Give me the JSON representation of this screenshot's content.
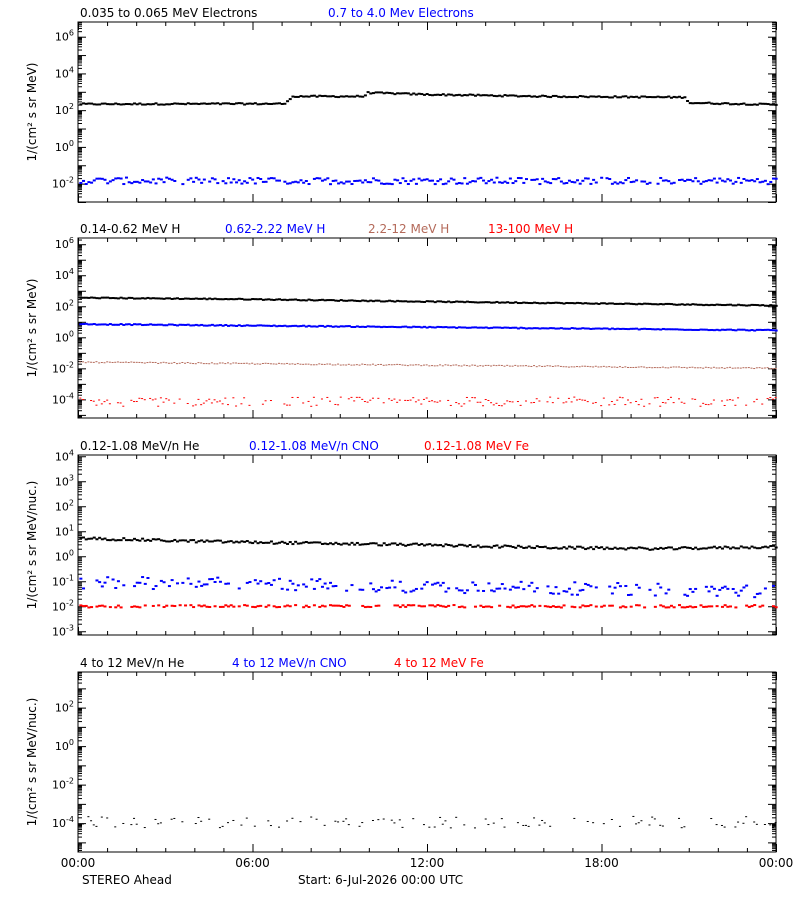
{
  "colors": {
    "black": "#000000",
    "blue": "#0000ff",
    "tan": "#b46a5a",
    "red": "#ff0000"
  },
  "footer": {
    "spacecraft": "STEREO Ahead",
    "start": "Start:  6-Jul-2026 00:00 UTC"
  },
  "x_tick_labels": [
    "00:00",
    "06:00",
    "12:00",
    "18:00",
    "00:00"
  ],
  "chart_data": [
    {
      "type": "scatter",
      "ylabel": "1/(cm² s sr MeV)",
      "yscale": "log",
      "ylim_exp": [
        -3.0,
        6.8
      ],
      "tick_exps": [
        6,
        4,
        2,
        0,
        -2
      ],
      "x_hours": [
        0,
        24
      ],
      "legend": [
        {
          "label": "0.035 to 0.065 MeV Electrons",
          "color": "#000000"
        },
        {
          "label": "0.7 to 4.0 Mev Electrons",
          "color": "#0000ff"
        }
      ],
      "series": [
        {
          "name": "0.035 to 0.065 MeV Electrons",
          "color": "#000000",
          "marker_px": 2,
          "density": 1,
          "keypoints_hours": [
            0,
            7.1,
            7.3,
            9.8,
            9.9,
            12,
            16,
            20.8,
            21.0,
            24
          ],
          "keypoints_log10": [
            2.33,
            2.35,
            2.75,
            2.75,
            2.95,
            2.85,
            2.75,
            2.7,
            2.4,
            2.3
          ],
          "jitter": 0.04
        },
        {
          "name": "0.7 to 4.0 Mev Electrons",
          "color": "#0000ff",
          "marker_px": 2,
          "density": 0.95,
          "keypoints_hours": [
            0,
            24
          ],
          "keypoints_log10": [
            -1.85,
            -1.85
          ],
          "jitter": 0.18
        }
      ]
    },
    {
      "type": "scatter",
      "ylabel": "1/(cm² s sr MeV)",
      "yscale": "log",
      "ylim_exp": [
        -5.2,
        6.4
      ],
      "tick_exps": [
        6,
        4,
        2,
        0,
        -2,
        -4
      ],
      "x_hours": [
        0,
        24
      ],
      "legend": [
        {
          "label": "0.14-0.62 MeV H",
          "color": "#000000"
        },
        {
          "label": "0.62-2.22 MeV H",
          "color": "#0000ff"
        },
        {
          "label": "2.2-12 MeV H",
          "color": "#b46a5a"
        },
        {
          "label": "13-100 MeV H",
          "color": "#ff0000"
        }
      ],
      "series": [
        {
          "name": "0.14-0.62 MeV H",
          "color": "#000000",
          "marker_px": 2,
          "density": 1,
          "keypoints_hours": [
            0,
            6,
            12,
            24
          ],
          "keypoints_log10": [
            2.55,
            2.45,
            2.3,
            2.05
          ],
          "jitter": 0.03
        },
        {
          "name": "0.62-2.22 MeV H",
          "color": "#0000ff",
          "marker_px": 2,
          "density": 1,
          "keypoints_hours": [
            0,
            24
          ],
          "keypoints_log10": [
            0.85,
            0.45
          ],
          "jitter": 0.03
        },
        {
          "name": "2.2-12 MeV H",
          "color": "#b46a5a",
          "marker_px": 1,
          "density": 1,
          "keypoints_hours": [
            0,
            24
          ],
          "keypoints_log10": [
            -1.6,
            -2.0
          ],
          "jitter": 0.04
        },
        {
          "name": "13-100 MeV H",
          "color": "#ff0000",
          "marker_px": 1,
          "density": 0.75,
          "keypoints_hours": [
            0,
            24
          ],
          "keypoints_log10": [
            -4.15,
            -4.15
          ],
          "jitter": 0.3
        }
      ]
    },
    {
      "type": "scatter",
      "ylabel": "1/(cm² s sr MeV/nuc.)",
      "yscale": "log",
      "ylim_exp": [
        -3.15,
        4.05
      ],
      "tick_exps": [
        4,
        3,
        2,
        1,
        0,
        -1,
        -2,
        -3
      ],
      "x_hours": [
        0,
        24
      ],
      "legend": [
        {
          "label": "0.12-1.08 MeV/n He",
          "color": "#000000"
        },
        {
          "label": "0.12-1.08 MeV/n CNO",
          "color": "#0000ff"
        },
        {
          "label": "0.12-1.08 MeV Fe",
          "color": "#ff0000"
        }
      ],
      "series": [
        {
          "name": "0.12-1.08 MeV/n He",
          "color": "#000000",
          "marker_px": 2,
          "density": 1,
          "keypoints_hours": [
            0,
            4,
            8,
            12,
            16,
            20,
            24
          ],
          "keypoints_log10": [
            0.72,
            0.6,
            0.52,
            0.45,
            0.35,
            0.3,
            0.38
          ],
          "jitter": 0.05
        },
        {
          "name": "0.12-1.08 MeV/n CNO",
          "color": "#0000ff",
          "marker_px": 2,
          "density": 0.7,
          "keypoints_hours": [
            0,
            5,
            24
          ],
          "keypoints_log10": [
            -1.05,
            -1.1,
            -1.4
          ],
          "jitter": 0.25
        },
        {
          "name": "0.12-1.08 MeV Fe",
          "color": "#ff0000",
          "marker_px": 2,
          "density": 0.65,
          "keypoints_hours": [
            0,
            24
          ],
          "keypoints_log10": [
            -2.0,
            -2.0
          ],
          "jitter": 0.05
        }
      ]
    },
    {
      "type": "scatter",
      "ylabel": "1/(cm² s sr MeV/nuc.)",
      "yscale": "log",
      "ylim_exp": [
        -5.5,
        3.85
      ],
      "tick_exps": [
        2,
        0,
        -2,
        -4
      ],
      "x_hours": [
        0,
        24
      ],
      "legend": [
        {
          "label": "4 to 12 MeV/n He",
          "color": "#000000"
        },
        {
          "label": "4 to 12 MeV/n CNO",
          "color": "#0000ff"
        },
        {
          "label": "4 to 12 MeV Fe",
          "color": "#ff0000"
        }
      ],
      "series": [
        {
          "name": "4 to 12 MeV/n He",
          "color": "#000000",
          "marker_px": 1,
          "density": 0.45,
          "keypoints_hours": [
            0,
            24
          ],
          "keypoints_log10": [
            -3.95,
            -3.95
          ],
          "jitter": 0.3
        }
      ]
    }
  ]
}
